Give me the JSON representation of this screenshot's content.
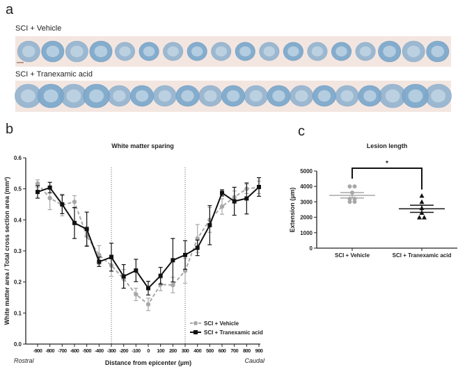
{
  "panel_a": {
    "label": "a",
    "row1_label": "SCI + Vehicle",
    "row2_label": "SCI + Tranexamic acid",
    "row1_sections": 18,
    "row2_sections": 19,
    "strip_color": "#f3e6e0",
    "tissue_color": "#7fa9cc"
  },
  "chart_data": [
    {
      "panel_label": "b",
      "type": "line",
      "title": "White matter sparing",
      "xlabel": "Distance from epicenter (µm)",
      "ylabel": "White matter area / Total cross section area (mm²)",
      "x_left_note": "Rostral",
      "x_right_note": "Caudal",
      "x": [
        -900,
        -800,
        -700,
        -600,
        -500,
        -400,
        -300,
        -200,
        -100,
        0,
        100,
        200,
        300,
        400,
        500,
        600,
        700,
        800,
        900
      ],
      "ylim": [
        0,
        0.6
      ],
      "yticks": [
        "0.0",
        "0.1",
        "0.2",
        "0.3",
        "0.4",
        "0.5",
        "0.6"
      ],
      "reference_lines_x": [
        -300,
        300
      ],
      "legend_position": "bottom-right",
      "series": [
        {
          "name": "SCI + Vehicle",
          "color": "#a8a8a8",
          "style": "dashed",
          "marker": "circle",
          "values": [
            0.517,
            0.47,
            0.448,
            0.458,
            0.348,
            0.287,
            0.253,
            0.21,
            0.16,
            0.128,
            0.192,
            0.19,
            0.236,
            0.34,
            0.4,
            0.443,
            0.473,
            0.5,
            0.505
          ],
          "sem": [
            0.012,
            0.037,
            0.035,
            0.02,
            0.03,
            0.03,
            0.035,
            0.03,
            0.02,
            0.02,
            0.02,
            0.025,
            0.04,
            0.045,
            0.04,
            0.025,
            0.02,
            0.015,
            0.02
          ]
        },
        {
          "name": "SCI + Tranexamic acid",
          "color": "#111111",
          "style": "solid",
          "marker": "square",
          "values": [
            0.49,
            0.504,
            0.45,
            0.39,
            0.37,
            0.265,
            0.28,
            0.218,
            0.237,
            0.18,
            0.22,
            0.27,
            0.287,
            0.31,
            0.383,
            0.487,
            0.46,
            0.469,
            0.506
          ],
          "sem": [
            0.02,
            0.017,
            0.03,
            0.05,
            0.055,
            0.015,
            0.045,
            0.038,
            0.036,
            0.022,
            0.027,
            0.07,
            0.046,
            0.025,
            0.063,
            0.01,
            0.045,
            0.05,
            0.03
          ]
        }
      ]
    },
    {
      "panel_label": "c",
      "type": "scatter",
      "title": "Lesion length",
      "ylabel": "Extension (µm)",
      "ylim": [
        0,
        5000
      ],
      "yticks": [
        "0",
        "1000",
        "2000",
        "3000",
        "4000",
        "5000"
      ],
      "significance": "*",
      "groups": [
        {
          "name": "SCI + Vehicle",
          "color": "#a8a8a8",
          "marker": "circle",
          "points": [
            4000,
            4000,
            3600,
            3200,
            3200,
            3000,
            3000
          ],
          "mean": 3420,
          "sem_low": 3250,
          "sem_high": 3600
        },
        {
          "name": "SCI + Tranexamic acid",
          "color": "#111111",
          "marker": "triangle",
          "points": [
            3400,
            3000,
            2600,
            2300,
            2000,
            2000
          ],
          "mean": 2550,
          "sem_low": 2320,
          "sem_high": 2780
        }
      ]
    }
  ]
}
